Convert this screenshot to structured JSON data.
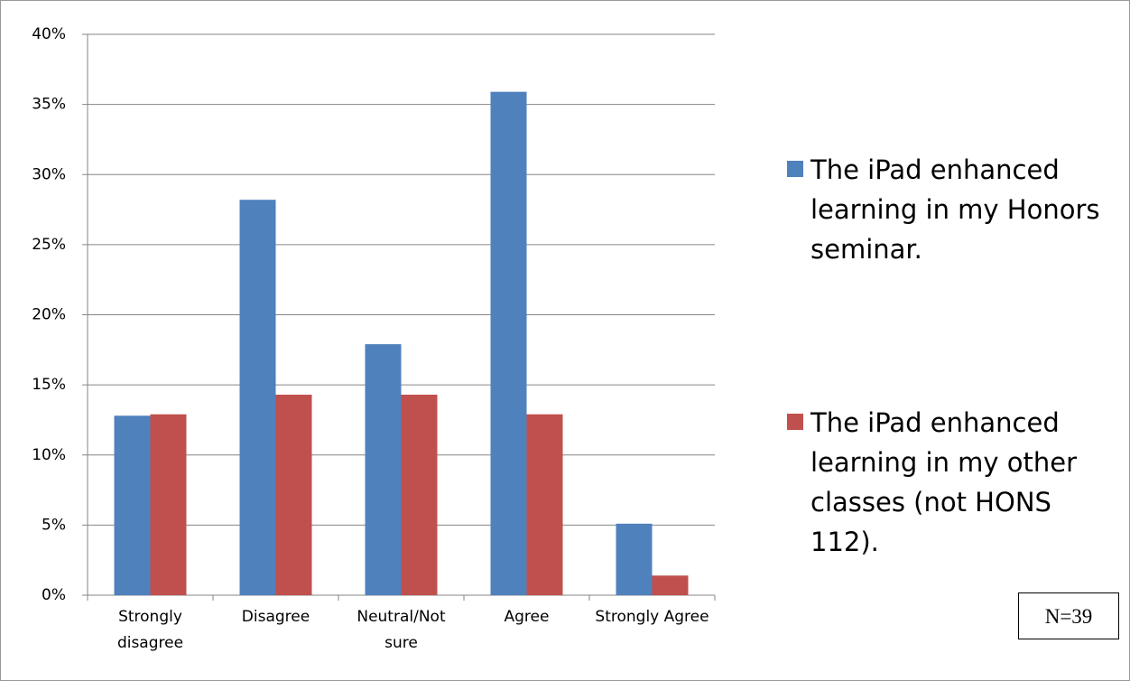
{
  "chart_data": {
    "type": "bar",
    "categories": [
      "Strongly disagree",
      "Disagree",
      "Neutral/Not sure",
      "Agree",
      "Strongly Agree"
    ],
    "series": [
      {
        "name": "The iPad enhanced learning in my Honors seminar.",
        "color": "#4f81bd",
        "values": [
          12.8,
          28.2,
          17.9,
          35.9,
          5.1
        ]
      },
      {
        "name": "The iPad enhanced learning in my other classes (not HONS 112).",
        "color": "#c0504d",
        "values": [
          12.9,
          14.3,
          14.3,
          12.9,
          1.4
        ]
      }
    ],
    "ylim": [
      0,
      40
    ],
    "yticks": [
      {
        "value": 0,
        "label": "0%"
      },
      {
        "value": 5,
        "label": "5%"
      },
      {
        "value": 10,
        "label": "10%"
      },
      {
        "value": 15,
        "label": "15%"
      },
      {
        "value": 20,
        "label": "20%"
      },
      {
        "value": 25,
        "label": "25%"
      },
      {
        "value": 30,
        "label": "30%"
      },
      {
        "value": 35,
        "label": "35%"
      },
      {
        "value": 40,
        "label": "40%"
      }
    ],
    "grid": true,
    "legend": "right",
    "annotation": "N=39"
  }
}
